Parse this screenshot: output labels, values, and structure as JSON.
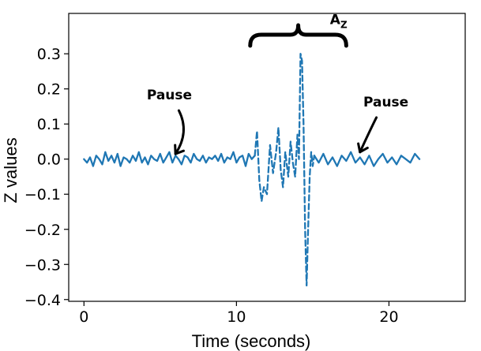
{
  "chart_data": {
    "type": "line",
    "title": "",
    "xlabel": "Time (seconds)",
    "ylabel": "Z values",
    "xlim": [
      -1,
      25
    ],
    "ylim": [
      -0.405,
      0.415
    ],
    "xticks": [
      0,
      10,
      20
    ],
    "yticks": [
      -0.4,
      -0.3,
      -0.2,
      -0.1,
      0.0,
      0.1,
      0.2,
      0.3
    ],
    "grid": false,
    "legend": "none",
    "series": [
      {
        "color": "#1f77b4",
        "segments": [
          {
            "style": "solid",
            "x": [
              0.0,
              0.2,
              0.4,
              0.6,
              0.8,
              1.0,
              1.2,
              1.4,
              1.6,
              1.8,
              2.0,
              2.2,
              2.4,
              2.6,
              2.8,
              3.0,
              3.2,
              3.4,
              3.6,
              3.8,
              4.0,
              4.2,
              4.4,
              4.6,
              4.8,
              5.0,
              5.2,
              5.4,
              5.6,
              5.8,
              6.0,
              6.2,
              6.4,
              6.6,
              6.8,
              7.0,
              7.2,
              7.4,
              7.6,
              7.8,
              8.0,
              8.2,
              8.4,
              8.6,
              8.8,
              9.0,
              9.2,
              9.4,
              9.6,
              9.8,
              10.0,
              10.2,
              10.4,
              10.6,
              10.8,
              11.0,
              11.2
            ],
            "y": [
              0.0,
              -0.01,
              0.005,
              -0.02,
              0.01,
              0.0,
              -0.015,
              0.02,
              -0.005,
              0.01,
              -0.01,
              0.015,
              -0.02,
              0.005,
              0.0,
              -0.01,
              0.01,
              -0.005,
              0.02,
              -0.01,
              0.005,
              -0.015,
              0.01,
              0.0,
              -0.005,
              0.015,
              -0.01,
              0.005,
              0.02,
              -0.01,
              0.01,
              0.0,
              -0.015,
              0.01,
              0.005,
              -0.01,
              0.015,
              0.0,
              -0.005,
              0.01,
              -0.01,
              0.005,
              0.0,
              0.01,
              -0.005,
              0.015,
              -0.01,
              0.005,
              0.0,
              0.02,
              -0.01,
              0.005,
              0.01,
              -0.02,
              0.015,
              0.0,
              0.01
            ]
          },
          {
            "style": "dashed",
            "x": [
              11.2,
              11.35,
              11.5,
              11.65,
              11.8,
              12.0,
              12.2,
              12.4,
              12.6,
              12.75,
              12.9,
              13.05,
              13.2,
              13.4,
              13.55,
              13.7,
              13.85,
              14.0,
              14.1,
              14.2,
              14.3,
              14.4,
              14.5,
              14.6,
              14.7,
              14.8,
              14.9,
              15.0,
              15.1
            ],
            "y": [
              0.01,
              0.08,
              -0.06,
              -0.12,
              -0.08,
              -0.1,
              0.04,
              -0.04,
              0.02,
              0.09,
              -0.03,
              -0.08,
              0.02,
              -0.05,
              0.05,
              -0.01,
              -0.05,
              0.07,
              0.0,
              0.3,
              0.28,
              0.1,
              -0.2,
              -0.36,
              -0.2,
              -0.05,
              0.02,
              -0.02,
              0.01
            ]
          },
          {
            "style": "solid",
            "x": [
              15.1,
              15.4,
              15.7,
              16.0,
              16.3,
              16.6,
              16.9,
              17.2,
              17.5,
              17.8,
              18.1,
              18.4,
              18.7,
              19.0,
              19.3,
              19.6,
              19.9,
              20.2,
              20.5,
              20.8,
              21.1,
              21.4,
              21.7,
              22.0
            ],
            "y": [
              0.01,
              -0.01,
              0.015,
              -0.015,
              0.005,
              -0.02,
              0.01,
              -0.005,
              0.02,
              -0.01,
              0.005,
              -0.015,
              0.01,
              -0.02,
              0.0,
              0.015,
              -0.01,
              0.005,
              -0.015,
              0.01,
              0.0,
              -0.01,
              0.015,
              0.0
            ]
          }
        ]
      }
    ],
    "annotations": [
      {
        "text": "Pause",
        "x": 5.6,
        "y": 0.17,
        "arrow_to": [
          6.0,
          0.015
        ]
      },
      {
        "text": "Pause",
        "x": 19.8,
        "y": 0.15,
        "arrow_to": [
          18.1,
          0.02
        ]
      },
      {
        "text": "A",
        "subscript": "Z",
        "x": 16.7,
        "y": 0.385,
        "brace_from": 10.9,
        "brace_to": 17.2
      }
    ]
  }
}
